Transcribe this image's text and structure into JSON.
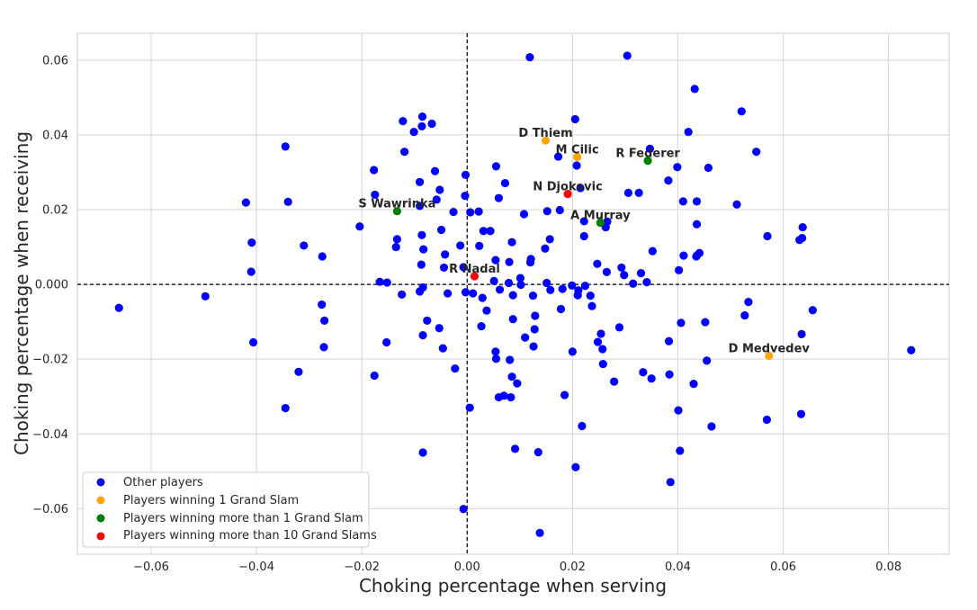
{
  "chart_data": {
    "type": "scatter",
    "xlabel": "Choking percentage when serving",
    "ylabel": "Choking percentage when receiving",
    "xlim": [
      -0.074,
      0.0915
    ],
    "ylim": [
      -0.0722,
      0.0672
    ],
    "x_ticks": [
      -0.06,
      -0.04,
      -0.02,
      0.0,
      0.02,
      0.04,
      0.06,
      0.08
    ],
    "x_tick_labels": [
      "−0.06",
      "−0.04",
      "−0.02",
      "0.00",
      "0.02",
      "0.04",
      "0.06",
      "0.08"
    ],
    "y_ticks": [
      -0.06,
      -0.04,
      -0.02,
      0.0,
      0.02,
      0.04,
      0.06
    ],
    "y_tick_labels": [
      "−0.06",
      "−0.04",
      "−0.02",
      "0.000",
      "0.02",
      "0.04",
      "0.06"
    ],
    "grid": true,
    "reference_lines": {
      "x": 0,
      "y": 0,
      "style": "dashed"
    },
    "legend_position": "lower-left",
    "series": [
      {
        "name": "Other players",
        "color": "#0000ff",
        "points": [
          [
            -0.0661,
            -0.0063
          ],
          [
            -0.0497,
            -0.0032
          ],
          [
            -0.042,
            0.0219
          ],
          [
            -0.0409,
            0.0112
          ],
          [
            -0.041,
            0.0034
          ],
          [
            -0.0406,
            -0.0155
          ],
          [
            -0.0345,
            0.0369
          ],
          [
            -0.034,
            0.0221
          ],
          [
            -0.0345,
            -0.0331
          ],
          [
            -0.032,
            -0.0234
          ],
          [
            -0.031,
            0.0104
          ],
          [
            -0.0275,
            0.0075
          ],
          [
            -0.0276,
            -0.0054
          ],
          [
            -0.0271,
            -0.0097
          ],
          [
            -0.0272,
            -0.0168
          ],
          [
            -0.0204,
            0.0155
          ],
          [
            -0.0177,
            0.0306
          ],
          [
            -0.0175,
            0.024
          ],
          [
            -0.0176,
            -0.0244
          ],
          [
            -0.0166,
            0.0007
          ],
          [
            -0.0152,
            0.0005
          ],
          [
            -0.0153,
            -0.0155
          ],
          [
            -0.0133,
            0.0121
          ],
          [
            -0.0135,
            0.01
          ],
          [
            -0.0122,
            0.0437
          ],
          [
            -0.0119,
            0.0355
          ],
          [
            -0.0124,
            -0.0027
          ],
          [
            -0.0101,
            0.0408
          ],
          [
            -0.0085,
            0.0449
          ],
          [
            -0.0086,
            0.0423
          ],
          [
            -0.009,
            0.0274
          ],
          [
            -0.009,
            0.021
          ],
          [
            -0.0086,
            0.0132
          ],
          [
            -0.0083,
            0.0094
          ],
          [
            -0.0087,
            0.0053
          ],
          [
            -0.0084,
            -0.0008
          ],
          [
            -0.009,
            -0.0019
          ],
          [
            -0.0084,
            -0.0136
          ],
          [
            -0.0076,
            -0.0097
          ],
          [
            -0.0084,
            -0.045
          ],
          [
            -0.0067,
            0.043
          ],
          [
            -0.0061,
            0.0303
          ],
          [
            -0.0052,
            0.0253
          ],
          [
            -0.0058,
            0.0227
          ],
          [
            -0.0049,
            0.0146
          ],
          [
            -0.0042,
            0.008
          ],
          [
            -0.0044,
            0.0045
          ],
          [
            -0.0037,
            -0.0024
          ],
          [
            -0.0053,
            -0.0117
          ],
          [
            -0.0046,
            -0.0171
          ],
          [
            -0.0026,
            0.0194
          ],
          [
            -0.0023,
            -0.0225
          ],
          [
            -0.0013,
            0.0104
          ],
          [
            -0.0003,
            0.0293
          ],
          [
            -0.0004,
            0.0237
          ],
          [
            -0.0007,
            0.0046
          ],
          [
            -0.0003,
            -0.0021
          ],
          [
            -0.0007,
            -0.0601
          ],
          [
            0.0005,
            -0.033
          ],
          [
            0.0006,
            0.0193
          ],
          [
            0.0011,
            -0.0024
          ],
          [
            0.0022,
            0.0195
          ],
          [
            0.0023,
            0.0103
          ],
          [
            0.0029,
            -0.0036
          ],
          [
            0.0027,
            -0.0112
          ],
          [
            0.0031,
            0.0143
          ],
          [
            0.0044,
            0.0143
          ],
          [
            0.0037,
            -0.007
          ],
          [
            0.0055,
            0.0316
          ],
          [
            0.006,
            0.0231
          ],
          [
            0.0054,
            0.0065
          ],
          [
            0.0051,
            0.0009
          ],
          [
            0.0062,
            -0.0014
          ],
          [
            0.0054,
            -0.018
          ],
          [
            0.0055,
            -0.0199
          ],
          [
            0.006,
            -0.0302
          ],
          [
            0.0072,
            0.0271
          ],
          [
            0.007,
            -0.0298
          ],
          [
            0.008,
            0.006
          ],
          [
            0.0079,
            0.0004
          ],
          [
            0.0081,
            -0.0202
          ],
          [
            0.0085,
            0.0113
          ],
          [
            0.0087,
            -0.0029
          ],
          [
            0.0087,
            -0.0093
          ],
          [
            0.0085,
            -0.0247
          ],
          [
            0.0083,
            -0.0302
          ],
          [
            0.0091,
            -0.044
          ],
          [
            0.0095,
            -0.0265
          ],
          [
            0.0101,
            0.0017
          ],
          [
            0.0102,
            -0.0001
          ],
          [
            0.0108,
            0.0188
          ],
          [
            0.011,
            -0.0142
          ],
          [
            0.0119,
            0.0608
          ],
          [
            0.0121,
            0.0068
          ],
          [
            0.012,
            0.0059
          ],
          [
            0.0125,
            -0.003
          ],
          [
            0.0126,
            -0.0166
          ],
          [
            0.0128,
            -0.012
          ],
          [
            0.0129,
            -0.0084
          ],
          [
            0.0135,
            -0.0449
          ],
          [
            0.0138,
            -0.0665
          ],
          [
            0.0148,
            0.0096
          ],
          [
            0.0152,
            0.0196
          ],
          [
            0.0151,
            0.0004
          ],
          [
            0.0157,
            0.0121
          ],
          [
            0.0158,
            -0.0015
          ],
          [
            0.0173,
            0.0342
          ],
          [
            0.0176,
            0.0199
          ],
          [
            0.0178,
            -0.0066
          ],
          [
            0.0181,
            -0.0012
          ],
          [
            0.0185,
            -0.0296
          ],
          [
            0.0199,
            -0.0003
          ],
          [
            0.02,
            -0.018
          ],
          [
            0.0205,
            0.0442
          ],
          [
            0.0206,
            -0.0489
          ],
          [
            0.0208,
            0.0318
          ],
          [
            0.0211,
            -0.0016
          ],
          [
            0.021,
            -0.0029
          ],
          [
            0.0215,
            0.0258
          ],
          [
            0.0218,
            -0.0379
          ],
          [
            0.0222,
            0.0169
          ],
          [
            0.0222,
            0.0129
          ],
          [
            0.0224,
            -0.0004
          ],
          [
            0.0234,
            -0.003
          ],
          [
            0.0237,
            -0.0058
          ],
          [
            0.0247,
            0.0055
          ],
          [
            0.0248,
            -0.0154
          ],
          [
            0.0254,
            -0.0132
          ],
          [
            0.0257,
            -0.0173
          ],
          [
            0.0258,
            -0.0213
          ],
          [
            0.0263,
            0.0153
          ],
          [
            0.0266,
            0.0168
          ],
          [
            0.0265,
            0.0033
          ],
          [
            0.0279,
            -0.026
          ],
          [
            0.0289,
            -0.0115
          ],
          [
            0.0293,
            0.0045
          ],
          [
            0.0298,
            0.0025
          ],
          [
            0.0304,
            0.0612
          ],
          [
            0.0306,
            0.0245
          ],
          [
            0.0315,
            0.0002
          ],
          [
            0.0326,
            0.0245
          ],
          [
            0.033,
            0.003
          ],
          [
            0.0334,
            -0.0235
          ],
          [
            0.0341,
            0.0006
          ],
          [
            0.0347,
            0.0363
          ],
          [
            0.035,
            -0.0252
          ],
          [
            0.0352,
            0.0089
          ],
          [
            0.0382,
            0.0278
          ],
          [
            0.0383,
            -0.0152
          ],
          [
            0.0384,
            -0.0241
          ],
          [
            0.0386,
            -0.0529
          ],
          [
            0.0399,
            0.0314
          ],
          [
            0.0402,
            0.0038
          ],
          [
            0.0401,
            -0.0337
          ],
          [
            0.0404,
            -0.0445
          ],
          [
            0.0406,
            -0.0103
          ],
          [
            0.041,
            0.0222
          ],
          [
            0.0411,
            0.0077
          ],
          [
            0.042,
            0.0408
          ],
          [
            0.043,
            -0.0266
          ],
          [
            0.0432,
            0.0523
          ],
          [
            0.0435,
            0.0075
          ],
          [
            0.0436,
            0.0222
          ],
          [
            0.0436,
            0.0161
          ],
          [
            0.0436,
            0.0077
          ],
          [
            0.0441,
            0.0084
          ],
          [
            0.0452,
            -0.0101
          ],
          [
            0.0455,
            -0.0204
          ],
          [
            0.0458,
            0.0312
          ],
          [
            0.0464,
            -0.038
          ],
          [
            0.0512,
            0.0214
          ],
          [
            0.0521,
            0.0463
          ],
          [
            0.0527,
            -0.0083
          ],
          [
            0.0534,
            -0.0047
          ],
          [
            0.0549,
            0.0355
          ],
          [
            0.0569,
            -0.0362
          ],
          [
            0.057,
            0.0129
          ],
          [
            0.0631,
            0.0119
          ],
          [
            0.0636,
            0.0124
          ],
          [
            0.0637,
            0.0153
          ],
          [
            0.0635,
            -0.0133
          ],
          [
            0.0634,
            -0.0347
          ],
          [
            0.0656,
            -0.0069
          ],
          [
            0.0843,
            -0.0176
          ]
        ]
      },
      {
        "name": "Players winning 1 Grand Slam",
        "color": "#ffa500",
        "points": [
          [
            0.0149,
            0.0385
          ],
          [
            0.0209,
            0.0341
          ],
          [
            0.0573,
            -0.0191
          ]
        ]
      },
      {
        "name": "Players winning more than 1 Grand Slam",
        "color": "#008000",
        "points": [
          [
            -0.0133,
            0.0196
          ],
          [
            0.0343,
            0.0331
          ],
          [
            0.0253,
            0.0165
          ]
        ]
      },
      {
        "name": "Players winning more than 10 Grand Slams",
        "color": "#ff0000",
        "points": [
          [
            0.0191,
            0.0242
          ],
          [
            0.0014,
            0.0022
          ]
        ]
      }
    ],
    "annotations": [
      {
        "text": "D Thiem",
        "x": 0.0149,
        "y": 0.0385
      },
      {
        "text": "M Cilic",
        "x": 0.0209,
        "y": 0.0341
      },
      {
        "text": "R Federer",
        "x": 0.0343,
        "y": 0.0331
      },
      {
        "text": "S Wawrinka",
        "x": -0.0133,
        "y": 0.0196
      },
      {
        "text": "N Djokovic",
        "x": 0.0191,
        "y": 0.0242
      },
      {
        "text": "A Murray",
        "x": 0.0253,
        "y": 0.0165
      },
      {
        "text": "R Nadal",
        "x": 0.0014,
        "y": 0.0022
      },
      {
        "text": "D Medvedev",
        "x": 0.0573,
        "y": -0.0191
      }
    ]
  }
}
